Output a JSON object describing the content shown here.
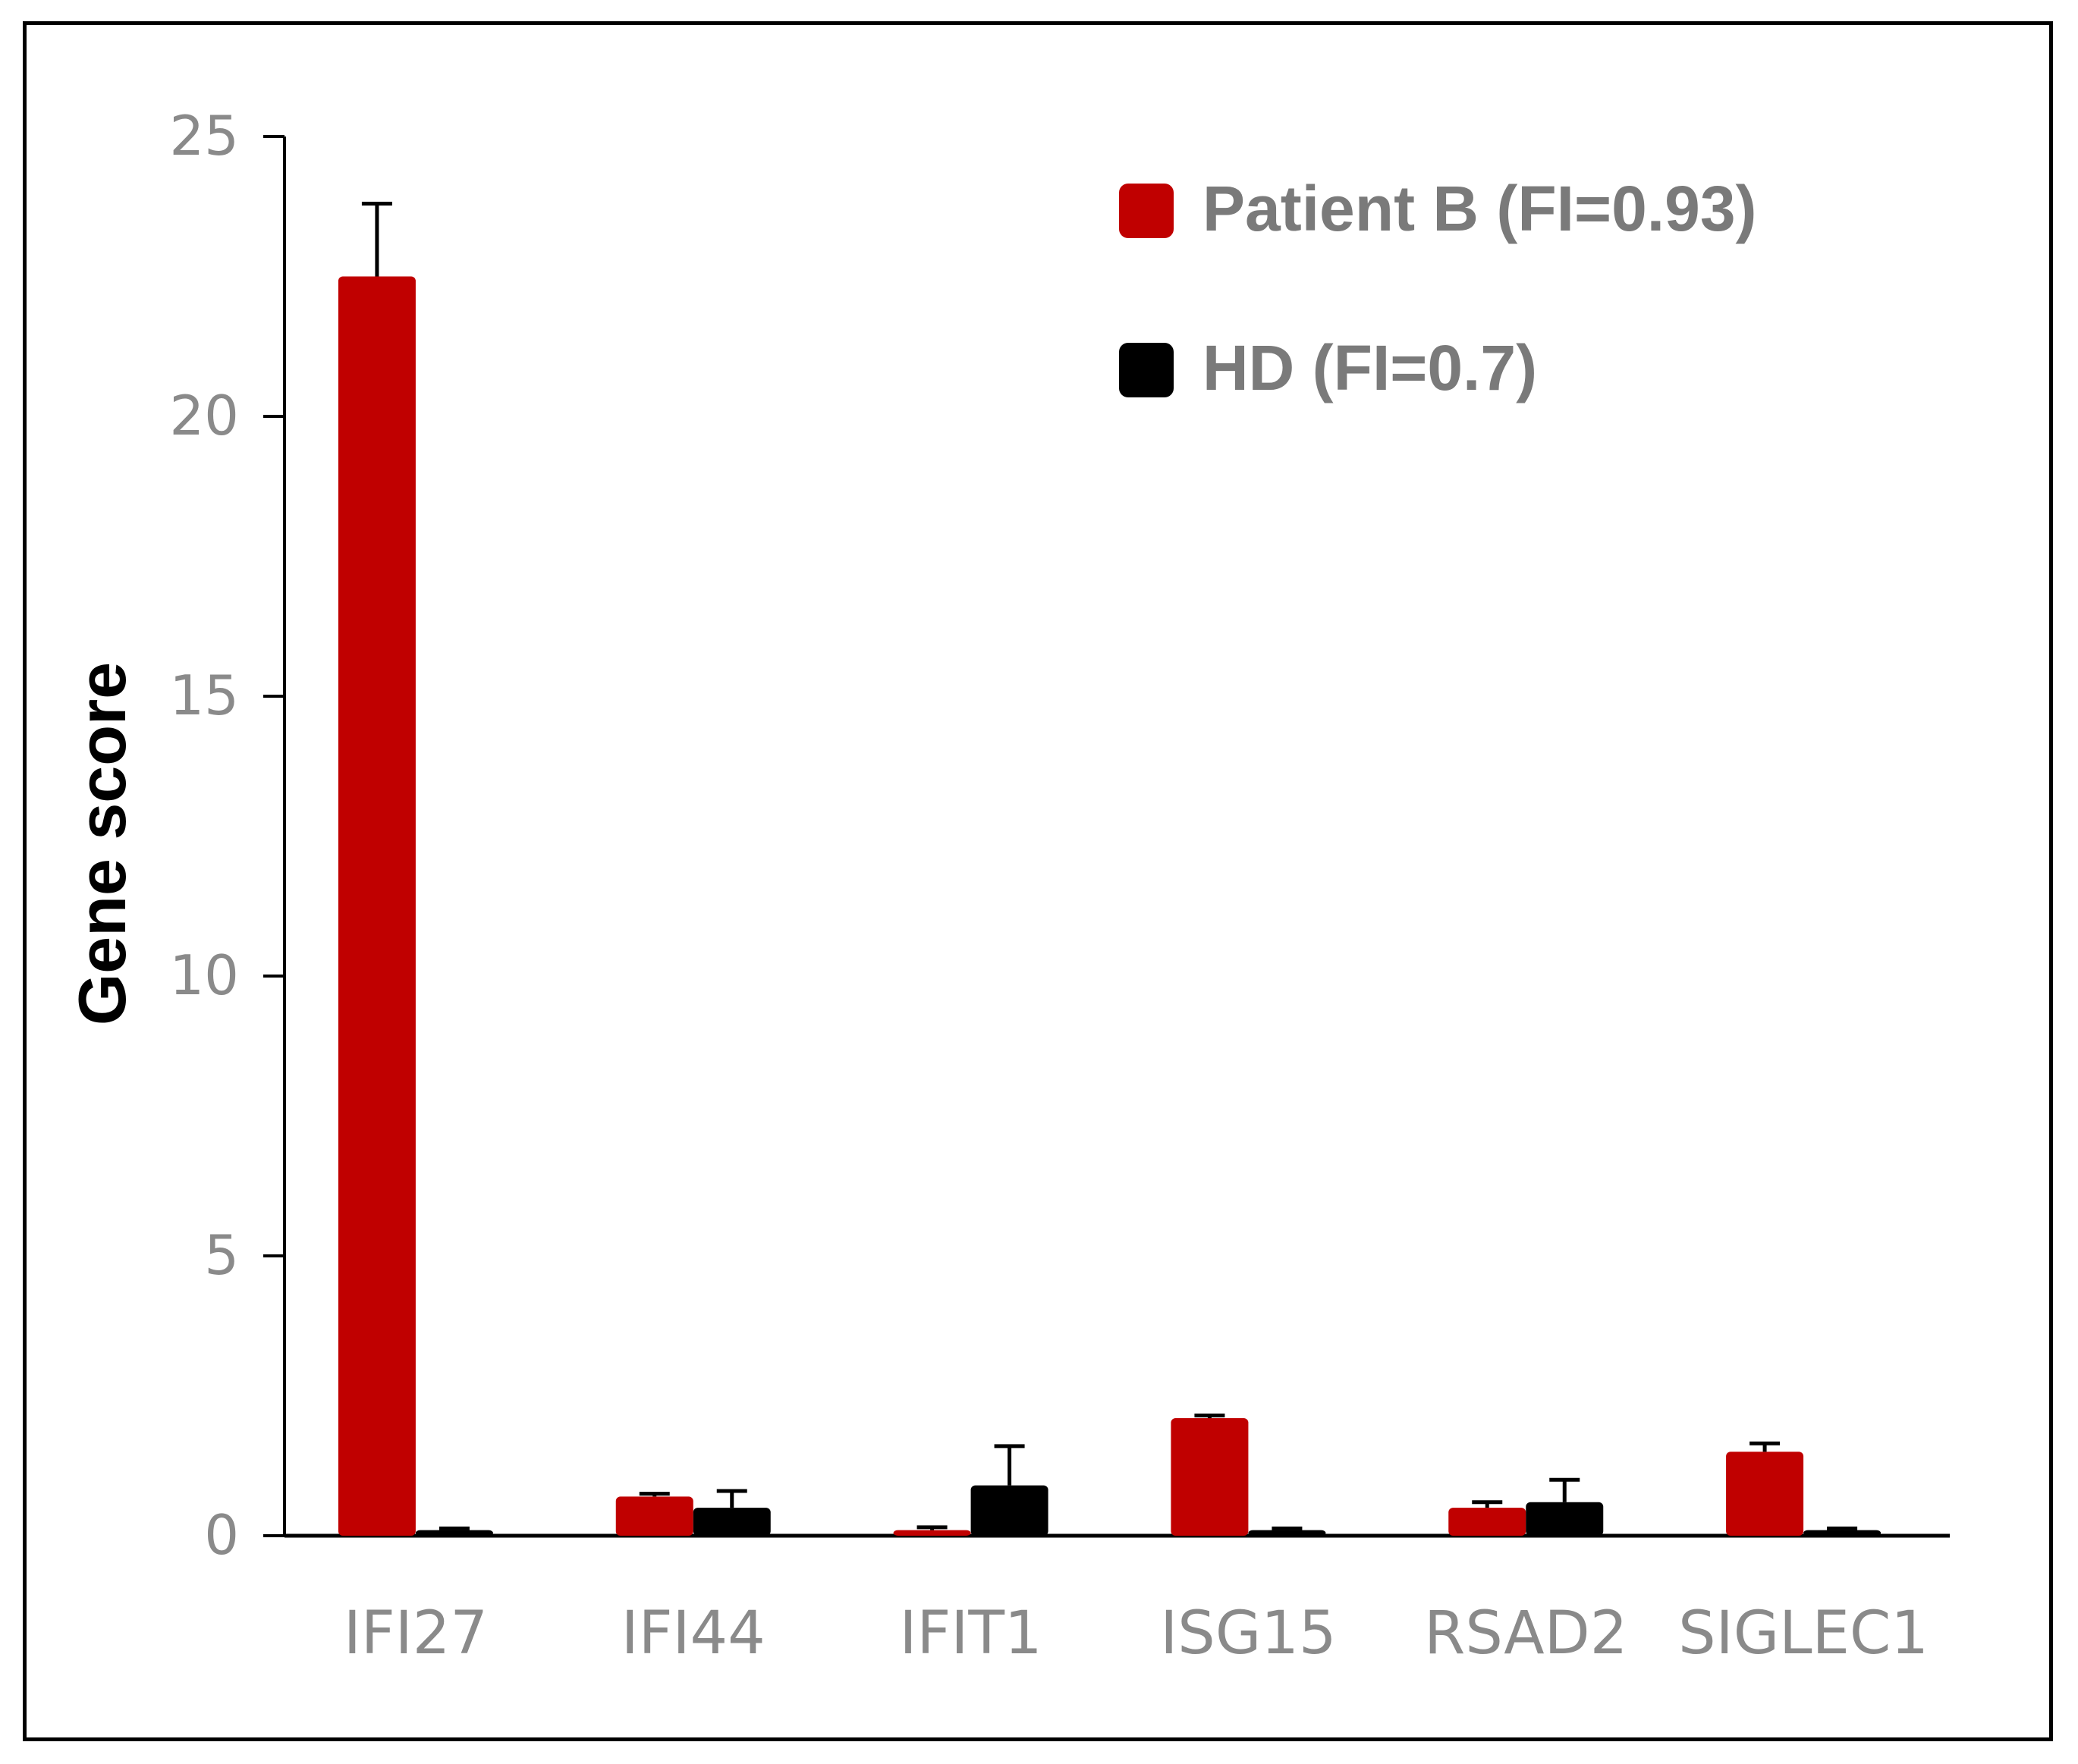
{
  "chart_data": {
    "type": "bar",
    "title": "",
    "xlabel": "",
    "ylabel": "Gene score",
    "ylim": [
      0,
      25
    ],
    "yticks": [
      "0",
      "5",
      "10",
      "15",
      "20",
      "25"
    ],
    "categories": [
      "IFI27",
      "IFI44",
      "IFIT1",
      "ISG15",
      "RSAD2",
      "SIGLEC1"
    ],
    "legend_position": "top-right",
    "grid": false,
    "series": [
      {
        "name": "Patient B (FI=0.93)",
        "color": "#c00000",
        "values": [
          22.5,
          0.7,
          0.1,
          2.1,
          0.5,
          1.5
        ],
        "errors": [
          1.3,
          0.05,
          0.05,
          0.05,
          0.1,
          0.15
        ]
      },
      {
        "name": "HD (FI=0.7)",
        "color": "#000000",
        "values": [
          0.1,
          0.5,
          0.9,
          0.1,
          0.6,
          0.1
        ],
        "errors": [
          0.03,
          0.3,
          0.7,
          0.03,
          0.4,
          0.03
        ]
      }
    ]
  }
}
